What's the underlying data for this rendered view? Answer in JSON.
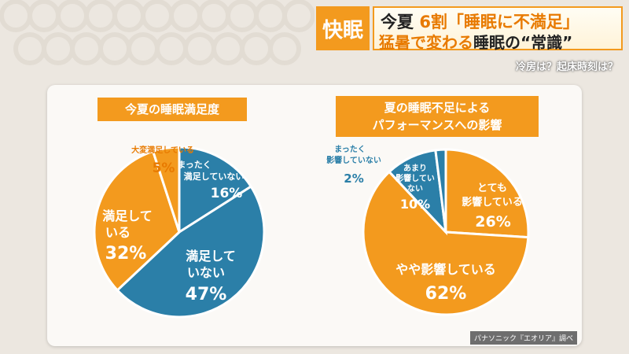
{
  "header": {
    "brand": "快眠",
    "line1_a": "今夏",
    "line1_b": "6割「睡眠に不満足」",
    "line2_a": "猛暑で変わる",
    "line2_b": "睡眠の“常識”",
    "subline": "冷房は？起床時刻は？"
  },
  "colors": {
    "orange": "#f39a1e",
    "blue": "#2b7fa8"
  },
  "credit": "パナソニック『エオリア』調べ",
  "chart_data": [
    {
      "type": "pie",
      "title": "今夏の睡眠満足度",
      "slices": [
        {
          "label": "まったく満足していない",
          "value": 16,
          "value_label": "16%",
          "color": "#2b7fa8"
        },
        {
          "label": "満足していない",
          "value": 47,
          "value_label": "47%",
          "color": "#2b7fa8"
        },
        {
          "label": "満足している",
          "value": 32,
          "value_label": "32%",
          "color": "#f39a1e"
        },
        {
          "label": "大変満足している",
          "value": 5,
          "value_label": "5%",
          "color": "#f39a1e"
        }
      ]
    },
    {
      "type": "pie",
      "title": "夏の睡眠不足によるパフォーマンスへの影響",
      "slices": [
        {
          "label": "とても影響している",
          "value": 26,
          "value_label": "26%",
          "color": "#f39a1e"
        },
        {
          "label": "やや影響している",
          "value": 62,
          "value_label": "62%",
          "color": "#f39a1e"
        },
        {
          "label": "あまり影響していない",
          "value": 10,
          "value_label": "10%",
          "color": "#2b7fa8"
        },
        {
          "label": "まったく影響していない",
          "value": 2,
          "value_label": "2%",
          "color": "#2b7fa8"
        }
      ]
    }
  ]
}
